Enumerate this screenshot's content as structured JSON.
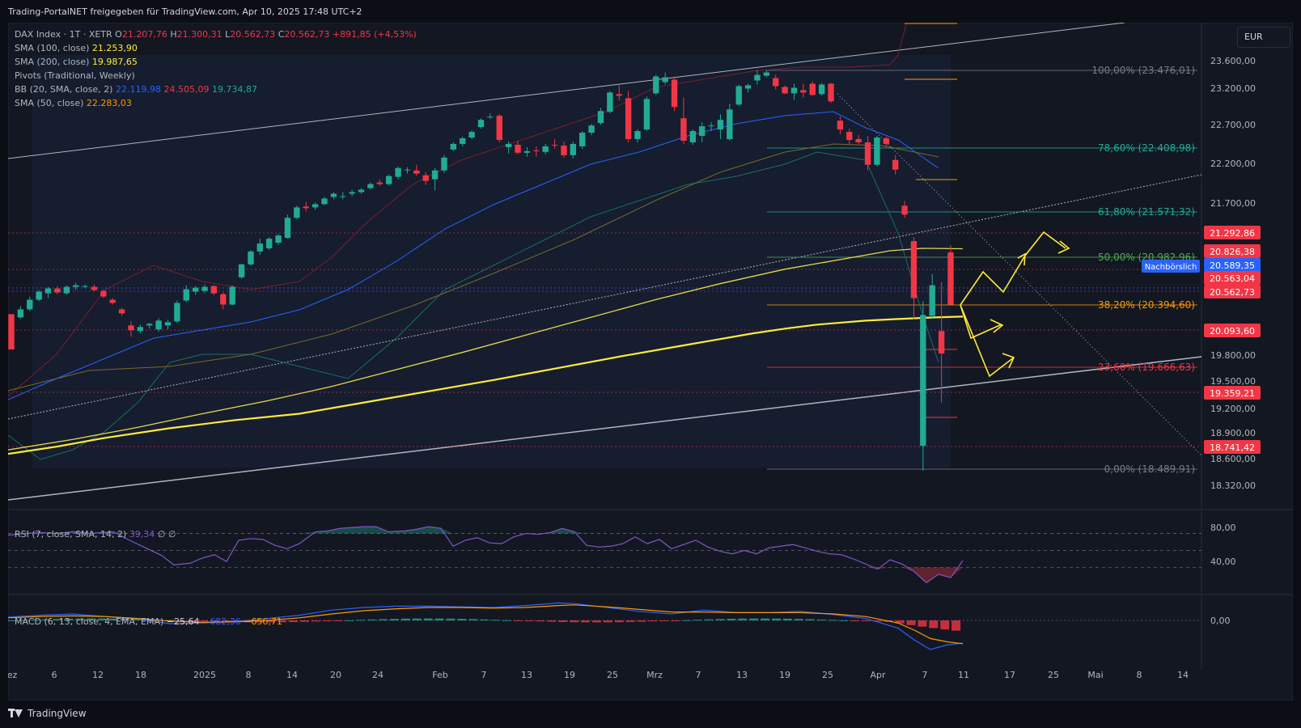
{
  "header": {
    "title": "Trading-PortalNET freigegeben für TradingView.com, Apr 10, 2025 17:48 UTC+2"
  },
  "currency": "EUR",
  "footer": {
    "brand": "TradingView"
  },
  "legend": {
    "symbol": "DAX Index · 1T · XETR",
    "o_label": "O",
    "o": "21.207,76",
    "h_label": "H",
    "h": "21.300,31",
    "l_label": "L",
    "l": "20.562,73",
    "c_label": "C",
    "c": "20.562,73",
    "change": "+891,85 (+4,53%)",
    "sma100_label": "SMA (100, close)",
    "sma100": "21.253,90",
    "sma200_label": "SMA (200, close)",
    "sma200": "19.987,65",
    "pivots_label": "Pivots (Traditional, Weekly)",
    "bb_label": "BB (20, SMA, close, 2)",
    "bb_mid": "22.119,98",
    "bb_up": "24.505,09",
    "bb_low": "19.734,87",
    "sma50_label": "SMA (50, close)",
    "sma50": "22.283,03"
  },
  "rsi_legend": {
    "label": "RSI (7, close, SMA, 14, 2)",
    "value": "39,34",
    "na1": "∅",
    "na2": "∅"
  },
  "macd_legend": {
    "label": "MACD (6, 13, close, 4, EMA, EMA)",
    "hist": "−25,64",
    "macd": "−682,36",
    "signal": "−656,71"
  },
  "colors": {
    "up": "#22ab94",
    "down": "#f23645",
    "sma200": "#ffeb3b",
    "sma100": "#e6d94a",
    "bb": "#2962ff",
    "bb_band": "#7b1e2c",
    "fib": "#22ab94",
    "arrow": "#ffeb3b",
    "rsi": "#7e57c2",
    "macd": "#2962ff",
    "signal": "#ff9800"
  },
  "chart_data": {
    "type": "candlestick",
    "price_axis": {
      "ticks": [
        "23.600,00",
        "23.200,00",
        "22.700,00",
        "22.200,00",
        "21.700,00",
        "19.800,00",
        "19.500,00",
        "19.200,00",
        "18.900,00",
        "18.600,00",
        "18.320,00"
      ]
    },
    "rsi_axis": {
      "ticks": [
        "80,00",
        "40,00"
      ]
    },
    "macd_axis": {
      "ticks": [
        "0,00"
      ]
    },
    "x_ticks": [
      "ez",
      "6",
      "12",
      "18",
      "2025",
      "8",
      "14",
      "20",
      "24",
      "Feb",
      "7",
      "13",
      "19",
      "25",
      "Mrz",
      "7",
      "13",
      "19",
      "25",
      "Apr",
      "7",
      "11",
      "17",
      "25",
      "Mai",
      "8",
      "14"
    ],
    "price_labels": [
      {
        "text": "21.292,86",
        "color": "#f23645"
      },
      {
        "text": "20.826,38",
        "color": "#f23645"
      },
      {
        "text": "Nachbörslich",
        "color": "#2962ff"
      },
      {
        "text": "20.589,35",
        "color": "#2962ff"
      },
      {
        "text": "20.563,04",
        "color": "#f23645"
      },
      {
        "text": "20.562,73",
        "color": "#f23645"
      },
      {
        "text": "20.093,60",
        "color": "#f23645"
      },
      {
        "text": "19.359,21",
        "color": "#f23645"
      },
      {
        "text": "18.741,42",
        "color": "#f23645"
      }
    ],
    "fib_levels": [
      {
        "text": "100,00% (23.476,01)",
        "color": "#787b86"
      },
      {
        "text": "78,60% (22.408,98)",
        "color": "#22ab94"
      },
      {
        "text": "61,80% (21.571,32)",
        "color": "#22ab94"
      },
      {
        "text": "50,00% (20.982,96)",
        "color": "#4caf50"
      },
      {
        "text": "38,20% (20.394,60)",
        "color": "#ff9800"
      },
      {
        "text": "23,60% (19.666,63)",
        "color": "#f23645"
      },
      {
        "text": "0,00% (18.489,91)",
        "color": "#787b86"
      }
    ],
    "candles": [
      [
        20440,
        20400,
        20040,
        20000
      ],
      [
        20400,
        20540,
        20380,
        20500
      ],
      [
        20500,
        20660,
        20480,
        20620
      ],
      [
        20620,
        20740,
        20600,
        20720
      ],
      [
        20700,
        20780,
        20640,
        20760
      ],
      [
        20760,
        20790,
        20690,
        20710
      ],
      [
        20700,
        20800,
        20680,
        20780
      ],
      [
        20780,
        20830,
        20740,
        20800
      ],
      [
        20790,
        20810,
        20760,
        20790
      ],
      [
        20780,
        20810,
        20720,
        20740
      ],
      [
        20730,
        20750,
        20640,
        20660
      ],
      [
        20620,
        20640,
        20560,
        20580
      ],
      [
        20500,
        20520,
        20420,
        20450
      ],
      [
        20300,
        20350,
        20160,
        20240
      ],
      [
        20230,
        20310,
        20200,
        20280
      ],
      [
        20300,
        20330,
        20260,
        20320
      ],
      [
        20250,
        20390,
        20220,
        20360
      ],
      [
        20300,
        20370,
        20250,
        20340
      ],
      [
        20350,
        20610,
        20330,
        20580
      ],
      [
        20610,
        20800,
        20590,
        20750
      ],
      [
        20720,
        20790,
        20680,
        20770
      ],
      [
        20730,
        20810,
        20700,
        20780
      ],
      [
        20790,
        20800,
        20680,
        20700
      ],
      [
        20690,
        20710,
        20500,
        20560
      ],
      [
        20560,
        20800,
        20550,
        20780
      ],
      [
        20900,
        21070,
        20880,
        21060
      ],
      [
        21060,
        21240,
        21040,
        21220
      ],
      [
        21220,
        21380,
        21180,
        21320
      ],
      [
        21260,
        21400,
        21240,
        21380
      ],
      [
        21330,
        21440,
        21300,
        21420
      ],
      [
        21390,
        21680,
        21380,
        21640
      ],
      [
        21640,
        21790,
        21620,
        21770
      ],
      [
        21780,
        21840,
        21720,
        21760
      ],
      [
        21770,
        21830,
        21740,
        21810
      ],
      [
        21810,
        21900,
        21800,
        21880
      ],
      [
        21900,
        21960,
        21870,
        21940
      ],
      [
        21900,
        21960,
        21870,
        21910
      ],
      [
        21940,
        21990,
        21910,
        21960
      ],
      [
        21960,
        22010,
        21940,
        21990
      ],
      [
        22010,
        22080,
        21990,
        22060
      ],
      [
        22080,
        22120,
        22040,
        22060
      ],
      [
        22060,
        22180,
        22040,
        22160
      ],
      [
        22150,
        22280,
        22120,
        22260
      ],
      [
        22230,
        22270,
        22190,
        22240
      ],
      [
        22230,
        22300,
        22160,
        22190
      ],
      [
        22170,
        22210,
        22050,
        22100
      ],
      [
        22120,
        22260,
        21980,
        22230
      ],
      [
        22230,
        22420,
        22200,
        22390
      ],
      [
        22490,
        22580,
        22470,
        22560
      ],
      [
        22560,
        22650,
        22530,
        22630
      ],
      [
        22640,
        22730,
        22620,
        22710
      ],
      [
        22770,
        22880,
        22750,
        22860
      ],
      [
        22890,
        22940,
        22870,
        22900
      ],
      [
        22910,
        22930,
        22580,
        22610
      ],
      [
        22520,
        22590,
        22440,
        22560
      ],
      [
        22550,
        22600,
        22430,
        22450
      ],
      [
        22450,
        22520,
        22400,
        22470
      ],
      [
        22480,
        22530,
        22400,
        22470
      ],
      [
        22460,
        22560,
        22430,
        22530
      ],
      [
        22550,
        22620,
        22500,
        22540
      ],
      [
        22540,
        22590,
        22390,
        22420
      ],
      [
        22420,
        22590,
        22380,
        22560
      ],
      [
        22530,
        22720,
        22500,
        22700
      ],
      [
        22700,
        22810,
        22670,
        22790
      ],
      [
        22820,
        23010,
        22800,
        22970
      ],
      [
        22960,
        23220,
        22940,
        23200
      ],
      [
        23180,
        23290,
        23100,
        23160
      ],
      [
        23130,
        23220,
        22580,
        22620
      ],
      [
        22620,
        22740,
        22580,
        22720
      ],
      [
        22740,
        23150,
        22720,
        23120
      ],
      [
        23190,
        23420,
        23170,
        23400
      ],
      [
        23330,
        23450,
        23300,
        23390
      ],
      [
        23360,
        23400,
        22970,
        23020
      ],
      [
        22880,
        23140,
        22560,
        22600
      ],
      [
        22580,
        22740,
        22550,
        22720
      ],
      [
        22660,
        22830,
        22580,
        22780
      ],
      [
        22790,
        22830,
        22720,
        22790
      ],
      [
        22740,
        22930,
        22620,
        22860
      ],
      [
        22620,
        23060,
        22600,
        22990
      ],
      [
        23050,
        23300,
        23030,
        23280
      ],
      [
        23250,
        23310,
        23200,
        23290
      ],
      [
        23350,
        23480,
        23300,
        23420
      ],
      [
        23410,
        23480,
        23390,
        23450
      ],
      [
        23380,
        23420,
        23240,
        23280
      ],
      [
        23270,
        23290,
        23180,
        23190
      ],
      [
        23190,
        23310,
        23110,
        23260
      ],
      [
        23230,
        23310,
        23140,
        23200
      ],
      [
        23310,
        23340,
        23160,
        23170
      ],
      [
        23180,
        23320,
        23160,
        23300
      ],
      [
        23310,
        23320,
        23070,
        23090
      ],
      [
        22850,
        22900,
        22680,
        22740
      ],
      [
        22710,
        22750,
        22560,
        22610
      ],
      [
        22620,
        22670,
        22560,
        22580
      ],
      [
        22580,
        22660,
        22230,
        22300
      ],
      [
        22300,
        22660,
        22280,
        22640
      ],
      [
        22630,
        22650,
        22530,
        22560
      ],
      [
        22360,
        22420,
        22180,
        22240
      ],
      [
        21790,
        21850,
        21640,
        21680
      ],
      [
        21350,
        21400,
        20380,
        20640
      ],
      [
        18800,
        20600,
        18490,
        20430
      ],
      [
        20420,
        20940,
        20380,
        20800
      ],
      [
        20230,
        20840,
        19340,
        19950
      ],
      [
        21210,
        21300,
        20560,
        20560
      ]
    ],
    "sma200_points": [
      [
        0,
        18700
      ],
      [
        60,
        18790
      ],
      [
        120,
        18900
      ],
      [
        200,
        19020
      ],
      [
        280,
        19120
      ],
      [
        360,
        19200
      ],
      [
        440,
        19340
      ],
      [
        520,
        19480
      ],
      [
        600,
        19620
      ],
      [
        680,
        19770
      ],
      [
        760,
        19920
      ],
      [
        840,
        20060
      ],
      [
        920,
        20200
      ],
      [
        960,
        20260
      ],
      [
        1000,
        20310
      ],
      [
        1060,
        20360
      ],
      [
        1100,
        20380
      ],
      [
        1145,
        20400
      ],
      [
        1180,
        20410
      ]
    ],
    "sma100_points": [
      [
        0,
        18750
      ],
      [
        80,
        18880
      ],
      [
        160,
        19030
      ],
      [
        240,
        19200
      ],
      [
        320,
        19360
      ],
      [
        400,
        19540
      ],
      [
        480,
        19750
      ],
      [
        560,
        19960
      ],
      [
        640,
        20180
      ],
      [
        720,
        20400
      ],
      [
        800,
        20620
      ],
      [
        880,
        20820
      ],
      [
        960,
        21000
      ],
      [
        1040,
        21140
      ],
      [
        1090,
        21230
      ],
      [
        1130,
        21260
      ],
      [
        1180,
        21255
      ]
    ],
    "rsi": [
      [
        0,
        68
      ],
      [
        20,
        70
      ],
      [
        40,
        71
      ],
      [
        60,
        70
      ],
      [
        80,
        72
      ],
      [
        100,
        70
      ],
      [
        130,
        72
      ],
      [
        150,
        62
      ],
      [
        170,
        53
      ],
      [
        190,
        44
      ],
      [
        205,
        33
      ],
      [
        225,
        35
      ],
      [
        240,
        41
      ],
      [
        255,
        45
      ],
      [
        270,
        37
      ],
      [
        285,
        62
      ],
      [
        300,
        64
      ],
      [
        315,
        63
      ],
      [
        330,
        56
      ],
      [
        345,
        52
      ],
      [
        360,
        58
      ],
      [
        380,
        72
      ],
      [
        395,
        73
      ],
      [
        410,
        76
      ],
      [
        425,
        77
      ],
      [
        440,
        78
      ],
      [
        455,
        78
      ],
      [
        470,
        72
      ],
      [
        490,
        73
      ],
      [
        505,
        75
      ],
      [
        520,
        78
      ],
      [
        535,
        76
      ],
      [
        550,
        55
      ],
      [
        565,
        62
      ],
      [
        580,
        65
      ],
      [
        595,
        59
      ],
      [
        610,
        58
      ],
      [
        625,
        66
      ],
      [
        640,
        70
      ],
      [
        655,
        69
      ],
      [
        670,
        71
      ],
      [
        685,
        76
      ],
      [
        700,
        72
      ],
      [
        715,
        56
      ],
      [
        730,
        54
      ],
      [
        745,
        55
      ],
      [
        760,
        58
      ],
      [
        775,
        66
      ],
      [
        790,
        58
      ],
      [
        805,
        63
      ],
      [
        820,
        52
      ],
      [
        835,
        57
      ],
      [
        850,
        62
      ],
      [
        865,
        54
      ],
      [
        880,
        49
      ],
      [
        895,
        46
      ],
      [
        910,
        50
      ],
      [
        925,
        46
      ],
      [
        940,
        53
      ],
      [
        955,
        55
      ],
      [
        970,
        57
      ],
      [
        985,
        53
      ],
      [
        1000,
        49
      ],
      [
        1015,
        46
      ],
      [
        1030,
        45
      ],
      [
        1045,
        40
      ],
      [
        1060,
        34
      ],
      [
        1075,
        28
      ],
      [
        1090,
        39
      ],
      [
        1105,
        34
      ],
      [
        1120,
        25
      ],
      [
        1135,
        12
      ],
      [
        1150,
        22
      ],
      [
        1165,
        18
      ],
      [
        1180,
        38
      ]
    ],
    "macd": [
      [
        0,
        5
      ],
      [
        40,
        8
      ],
      [
        80,
        10
      ],
      [
        120,
        6
      ],
      [
        160,
        2
      ],
      [
        200,
        -5
      ],
      [
        240,
        -4
      ],
      [
        280,
        -2
      ],
      [
        320,
        3
      ],
      [
        360,
        8
      ],
      [
        400,
        16
      ],
      [
        440,
        20
      ],
      [
        480,
        22
      ],
      [
        520,
        22
      ],
      [
        560,
        21
      ],
      [
        600,
        20
      ],
      [
        640,
        23
      ],
      [
        680,
        27
      ],
      [
        700,
        26
      ],
      [
        740,
        20
      ],
      [
        780,
        14
      ],
      [
        820,
        10
      ],
      [
        860,
        16
      ],
      [
        900,
        12
      ],
      [
        940,
        12
      ],
      [
        980,
        14
      ],
      [
        1020,
        9
      ],
      [
        1060,
        3
      ],
      [
        1100,
        -12
      ],
      [
        1120,
        -30
      ],
      [
        1140,
        -45
      ],
      [
        1160,
        -38
      ],
      [
        1180,
        -35
      ]
    ],
    "signal": [
      [
        0,
        4
      ],
      [
        40,
        6
      ],
      [
        80,
        7
      ],
      [
        120,
        6
      ],
      [
        160,
        3
      ],
      [
        200,
        -1
      ],
      [
        240,
        -3
      ],
      [
        280,
        -2
      ],
      [
        320,
        0
      ],
      [
        360,
        4
      ],
      [
        400,
        10
      ],
      [
        440,
        15
      ],
      [
        480,
        18
      ],
      [
        520,
        20
      ],
      [
        560,
        20
      ],
      [
        600,
        19
      ],
      [
        640,
        20
      ],
      [
        680,
        23
      ],
      [
        700,
        24
      ],
      [
        740,
        21
      ],
      [
        780,
        17
      ],
      [
        820,
        13
      ],
      [
        860,
        13
      ],
      [
        900,
        12
      ],
      [
        940,
        12
      ],
      [
        980,
        12
      ],
      [
        1020,
        10
      ],
      [
        1060,
        6
      ],
      [
        1100,
        -4
      ],
      [
        1120,
        -15
      ],
      [
        1140,
        -28
      ],
      [
        1160,
        -33
      ],
      [
        1180,
        -36
      ]
    ]
  }
}
